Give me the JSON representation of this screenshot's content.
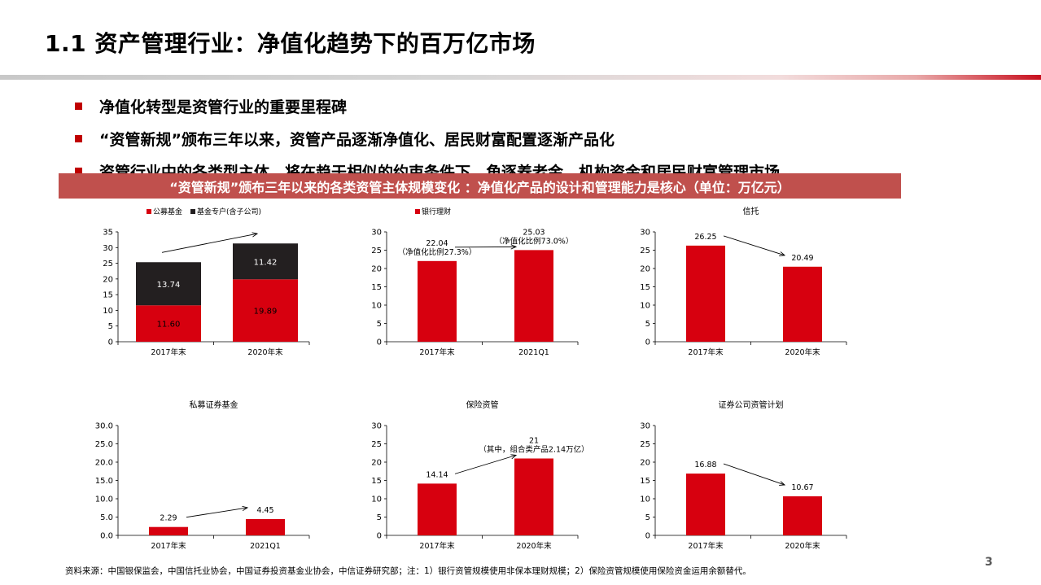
{
  "slide": {
    "title": "1.1 资产管理行业：净值化趋势下的百万亿市场",
    "bullets": [
      "净值化转型是资管行业的重要里程碑",
      "“资管新规”颁布三年以来，资管产品逐渐净值化、居民财富配置逐渐产品化",
      "资管行业中的各类型主体，将在趋于相似的约束条件下，角逐养老金、机构资金和居民财富管理市场。"
    ],
    "banner": "“资管新规”颁布三年以来的各类资管主体规模变化 ：净值化产品的设计和管理能力是核心（单位：万亿元）",
    "source": "资料来源：中国银保监会，中国信托业协会，中国证券投资基金业协会，中信证券研究部；注：1）银行资管规模使用非保本理财规模；2）保险资管规模使用保险资金运用余额替代。",
    "page_number": "3"
  },
  "colors": {
    "red": "#d7000f",
    "dark": "#231f20",
    "accent": "#c00000",
    "banner": "#c0504d"
  },
  "chart_data": [
    {
      "type": "bar",
      "stacked": true,
      "title": "",
      "categories": [
        "2017年末",
        "2020年末"
      ],
      "series": [
        {
          "name": "公募基金",
          "values": [
            11.6,
            19.89
          ],
          "labels": [
            "11.60",
            "19.89"
          ],
          "color": "#d7000f"
        },
        {
          "name": "基金专户(含子公司)",
          "values": [
            13.74,
            11.42
          ],
          "labels": [
            "13.74",
            "11.42"
          ],
          "color": "#231f20"
        }
      ],
      "ylim": [
        0,
        35
      ],
      "yticks": [
        0,
        5,
        10,
        15,
        20,
        25,
        30,
        35
      ],
      "ytick_labels": [
        "0",
        "5",
        "10",
        "15",
        "20",
        "25",
        "30",
        "35"
      ],
      "legend": "top-left",
      "trend_arrow": true
    },
    {
      "type": "bar",
      "title": "",
      "categories": [
        "2017年末",
        "2021Q1"
      ],
      "series": [
        {
          "name": "银行理财",
          "values": [
            22.04,
            25.03
          ],
          "color": "#d7000f"
        }
      ],
      "annotations": [
        [
          "22.04",
          "（净值化比例27.3%）"
        ],
        [
          "25.03",
          "（净值化比例73.0%）"
        ]
      ],
      "ylim": [
        0,
        30
      ],
      "yticks": [
        0,
        5,
        10,
        15,
        20,
        25,
        30
      ],
      "ytick_labels": [
        "0",
        "5",
        "10",
        "15",
        "20",
        "25",
        "30"
      ],
      "legend": "top-left",
      "trend_arrow": true
    },
    {
      "type": "bar",
      "title": "信托",
      "categories": [
        "2017年末",
        "2020年末"
      ],
      "series": [
        {
          "values": [
            26.25,
            20.49
          ],
          "color": "#d7000f"
        }
      ],
      "annotations": [
        [
          "26.25"
        ],
        [
          "20.49"
        ]
      ],
      "ylim": [
        0,
        30
      ],
      "yticks": [
        0,
        5,
        10,
        15,
        20,
        25,
        30
      ],
      "ytick_labels": [
        "0",
        "5",
        "10",
        "15",
        "20",
        "25",
        "30"
      ],
      "trend_arrow": true
    },
    {
      "type": "bar",
      "title": "私募证券基金",
      "categories": [
        "2017年末",
        "2021Q1"
      ],
      "series": [
        {
          "values": [
            2.29,
            4.45
          ],
          "color": "#d7000f"
        }
      ],
      "annotations": [
        [
          "2.29"
        ],
        [
          "4.45"
        ]
      ],
      "ylim": [
        0,
        30
      ],
      "yticks": [
        0,
        5,
        10,
        15,
        20,
        25,
        30
      ],
      "ytick_labels": [
        "0.0",
        "5.0",
        "10.0",
        "15.0",
        "20.0",
        "25.0",
        "30.0"
      ],
      "trend_arrow": true
    },
    {
      "type": "bar",
      "title": "保险资管",
      "categories": [
        "2017年末",
        "2020年末"
      ],
      "series": [
        {
          "values": [
            14.14,
            21
          ],
          "color": "#d7000f"
        }
      ],
      "annotations": [
        [
          "14.14"
        ],
        [
          "21",
          "（其中，组合类产品2.14万亿）"
        ]
      ],
      "ylim": [
        0,
        30
      ],
      "yticks": [
        0,
        5,
        10,
        15,
        20,
        25,
        30
      ],
      "ytick_labels": [
        "0",
        "5",
        "10",
        "15",
        "20",
        "25",
        "30"
      ],
      "trend_arrow": true
    },
    {
      "type": "bar",
      "title": "证券公司资管计划",
      "categories": [
        "2017年末",
        "2020年末"
      ],
      "series": [
        {
          "values": [
            16.88,
            10.67
          ],
          "color": "#d7000f"
        }
      ],
      "annotations": [
        [
          "16.88"
        ],
        [
          "10.67"
        ]
      ],
      "ylim": [
        0,
        30
      ],
      "yticks": [
        0,
        5,
        10,
        15,
        20,
        25,
        30
      ],
      "ytick_labels": [
        "0",
        "5",
        "10",
        "15",
        "20",
        "25",
        "30"
      ],
      "trend_arrow": true
    }
  ]
}
